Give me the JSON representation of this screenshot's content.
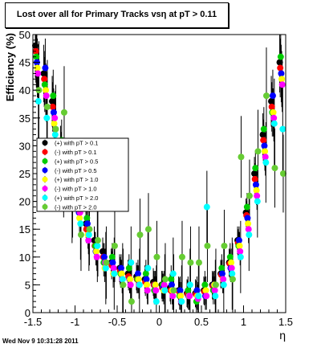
{
  "title": "Lost over all for Primary Tracks vsη at pT > 0.11",
  "footer": "Wed Nov  9 10:31:28 2011",
  "chart_data": {
    "type": "scatter",
    "xlabel": "η",
    "ylabel": "Efficiency (%)",
    "xlim": [
      -1.5,
      1.5
    ],
    "ylim": [
      0,
      50
    ],
    "xticks": [
      -1.5,
      -1,
      -0.5,
      0,
      0.5,
      1,
      1.5
    ],
    "xtick_labels": [
      "-1.5",
      "-1",
      "-0.5",
      "0",
      "0.5",
      "1",
      "1.5"
    ],
    "yticks": [
      0,
      5,
      10,
      15,
      20,
      25,
      30,
      35,
      40,
      45,
      50
    ],
    "ytick_labels": [
      "0",
      "5",
      "10",
      "15",
      "20",
      "25",
      "30",
      "35",
      "40",
      "45",
      "50"
    ],
    "grid": false,
    "legend_position": "left-middle",
    "series": [
      {
        "name": "(+) with pT > 0.1",
        "color": "#000000",
        "x": [
          -1.45,
          -1.35,
          -1.25,
          -1.15,
          -1.05,
          -0.95,
          -0.85,
          -0.75,
          -0.65,
          -0.55,
          -0.45,
          -0.35,
          -0.25,
          -0.15,
          -0.05,
          0.05,
          0.15,
          0.25,
          0.35,
          0.45,
          0.55,
          0.65,
          0.75,
          0.85,
          0.95,
          1.05,
          1.15,
          1.25,
          1.35,
          1.45
        ],
        "y": [
          48,
          43,
          38,
          30,
          25,
          21,
          16,
          13,
          11,
          9,
          8,
          7,
          6.5,
          6,
          5.5,
          5,
          4.5,
          4,
          3.5,
          3.5,
          4,
          5,
          7,
          9,
          13,
          18,
          25,
          32,
          38,
          45
        ]
      },
      {
        "name": "(-) with pT > 0.1",
        "color": "#ff0000",
        "x": [
          -1.45,
          -1.35,
          -1.25,
          -1.15,
          -1.05,
          -0.95,
          -0.85,
          -0.75,
          -0.65,
          -0.55,
          -0.45,
          -0.35,
          -0.25,
          -0.15,
          -0.05,
          0.05,
          0.15,
          0.25,
          0.35,
          0.45,
          0.55,
          0.65,
          0.75,
          0.85,
          0.95,
          1.05,
          1.15,
          1.25,
          1.35,
          1.45
        ],
        "y": [
          47,
          42,
          37,
          29,
          24,
          20,
          15,
          12,
          10,
          8.5,
          7.5,
          6.5,
          6,
          5.5,
          5,
          4.5,
          4,
          3.8,
          3.3,
          3.3,
          3.8,
          4.8,
          6.8,
          8.8,
          12.5,
          17.5,
          24,
          31,
          37,
          44
        ]
      },
      {
        "name": "(+) with pT > 0.5",
        "color": "#00cc00",
        "x": [
          -1.45,
          -1.35,
          -1.25,
          -1.15,
          -1.05,
          -0.95,
          -0.85,
          -0.75,
          -0.65,
          -0.55,
          -0.45,
          -0.35,
          -0.25,
          -0.15,
          -0.05,
          0.05,
          0.15,
          0.25,
          0.35,
          0.45,
          0.55,
          0.65,
          0.75,
          0.85,
          0.95,
          1.05,
          1.15,
          1.25,
          1.35,
          1.45
        ],
        "y": [
          46,
          41,
          39,
          31,
          23,
          19,
          17,
          12,
          9,
          10,
          7,
          8,
          6,
          7,
          4,
          5,
          6,
          3,
          4,
          2,
          5,
          4,
          8,
          10,
          12,
          19,
          26,
          33,
          36,
          46
        ]
      },
      {
        "name": "(-) with pT > 0.5",
        "color": "#0000ff",
        "x": [
          -1.45,
          -1.35,
          -1.25,
          -1.15,
          -1.05,
          -0.95,
          -0.85,
          -0.75,
          -0.65,
          -0.55,
          -0.45,
          -0.35,
          -0.25,
          -0.15,
          -0.05,
          0.05,
          0.15,
          0.25,
          0.35,
          0.45,
          0.55,
          0.65,
          0.75,
          0.85,
          0.95,
          1.05,
          1.15,
          1.25,
          1.35,
          1.45
        ],
        "y": [
          45,
          44,
          36,
          28,
          24,
          18,
          16,
          11,
          10,
          9,
          8,
          6,
          7,
          6,
          5,
          4.5,
          5,
          4,
          3,
          4,
          3,
          5,
          7,
          8,
          13,
          17,
          23,
          30,
          39,
          43
        ]
      },
      {
        "name": "(+) with pT > 1.0",
        "color": "#ffff00",
        "x": [
          -1.45,
          -1.35,
          -1.25,
          -1.15,
          -1.05,
          -0.95,
          -0.85,
          -0.75,
          -0.65,
          -0.55,
          -0.45,
          -0.35,
          -0.25,
          -0.15,
          -0.05,
          0.05,
          0.15,
          0.25,
          0.35,
          0.45,
          0.55,
          0.65,
          0.75,
          0.85,
          0.95,
          1.05,
          1.15,
          1.25,
          1.35,
          1.45
        ],
        "y": [
          44,
          40,
          34,
          27,
          22,
          17,
          14,
          11,
          8,
          7,
          7,
          6,
          6,
          5,
          5,
          4,
          4,
          3,
          3,
          3,
          4,
          5,
          6,
          9,
          12,
          16,
          22,
          29,
          36,
          42
        ]
      },
      {
        "name": "(-) with pT > 1.0",
        "color": "#ff00ff",
        "x": [
          -1.45,
          -1.35,
          -1.25,
          -1.15,
          -1.05,
          -0.95,
          -0.85,
          -0.75,
          -0.65,
          -0.55,
          -0.45,
          -0.35,
          -0.25,
          -0.15,
          -0.05,
          0.05,
          0.15,
          0.25,
          0.35,
          0.45,
          0.55,
          0.65,
          0.75,
          0.85,
          0.95,
          1.05,
          1.15,
          1.25,
          1.35,
          1.45
        ],
        "y": [
          43,
          39,
          35,
          26,
          21,
          18,
          13,
          10,
          9,
          8,
          6,
          5,
          5,
          4,
          4,
          5,
          3,
          2,
          3,
          2.5,
          3,
          4,
          6,
          8,
          11,
          15,
          21,
          28,
          35,
          41
        ]
      },
      {
        "name": "(+) with pT > 2.0",
        "color": "#00ffff",
        "x": [
          -1.45,
          -1.35,
          -1.25,
          -1.15,
          -1.05,
          -0.95,
          -0.85,
          -0.75,
          -0.65,
          -0.55,
          -0.45,
          -0.35,
          -0.25,
          -0.15,
          -0.05,
          0.05,
          0.15,
          0.25,
          0.35,
          0.45,
          0.55,
          0.65,
          0.75,
          0.85,
          0.95,
          1.05,
          1.15,
          1.25,
          1.35,
          1.45
        ],
        "y": [
          38,
          35,
          32,
          24,
          19,
          16,
          14,
          12,
          8,
          7,
          6,
          9,
          5,
          8,
          2,
          4,
          7,
          2,
          5,
          3,
          19,
          3,
          5,
          7,
          10,
          14,
          20,
          27,
          34,
          33
        ]
      },
      {
        "name": "(-) with pT > 2.0",
        "color": "#66cc33",
        "x": [
          -1.45,
          -1.35,
          -1.25,
          -1.15,
          -1.05,
          -0.95,
          -0.85,
          -0.75,
          -0.65,
          -0.55,
          -0.45,
          -0.35,
          -0.25,
          -0.15,
          -0.05,
          0.05,
          0.15,
          0.25,
          0.35,
          0.45,
          0.55,
          0.65,
          0.75,
          0.85,
          0.95,
          1.05,
          1.15,
          1.25,
          1.35,
          1.45
        ],
        "y": [
          40,
          37,
          33,
          36,
          20,
          14,
          15,
          13,
          9,
          12,
          5,
          2,
          14,
          15,
          10,
          6,
          4,
          10,
          9,
          9,
          12,
          5,
          12,
          6,
          28,
          21,
          29,
          39,
          26,
          25
        ]
      }
    ]
  }
}
